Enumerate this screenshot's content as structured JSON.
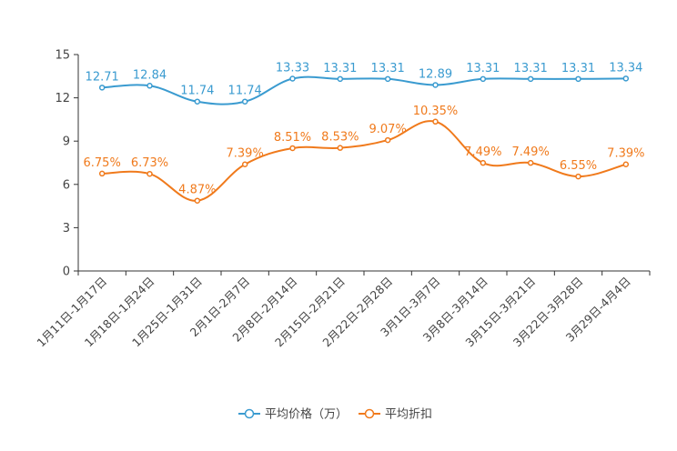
{
  "chart_data": {
    "type": "line",
    "title": "",
    "xlabel": "",
    "ylabel": "",
    "ylim": [
      0,
      15
    ],
    "yticks": [
      0,
      3,
      6,
      9,
      12,
      15
    ],
    "categories": [
      "1月11日-1月17日",
      "1月18日-1月24日",
      "1月25日-1月31日",
      "2月1日-2月7日",
      "2月8日-2月14日",
      "2月15日-2月21日",
      "2月22日-2月28日",
      "3月1日-3月7日",
      "3月8日-3月14日",
      "3月15日-3月21日",
      "3月22日-3月28日",
      "3月29日-4月4日"
    ],
    "series": [
      {
        "name": "平均价格（万）",
        "color": "#3a9bd0",
        "values": [
          12.71,
          12.84,
          11.74,
          11.74,
          13.33,
          13.31,
          13.31,
          12.89,
          13.31,
          13.31,
          13.31,
          13.34
        ],
        "labels": [
          "12.71",
          "12.84",
          "11.74",
          "11.74",
          "13.33",
          "13.31",
          "13.31",
          "12.89",
          "13.31",
          "13.31",
          "13.31",
          "13.34"
        ]
      },
      {
        "name": "平均折扣",
        "color": "#f07a1c",
        "values": [
          6.75,
          6.73,
          4.87,
          7.39,
          8.51,
          8.53,
          9.07,
          10.35,
          7.49,
          7.49,
          6.55,
          7.39
        ],
        "labels": [
          "6.75%",
          "6.73%",
          "4.87%",
          "7.39%",
          "8.51%",
          "8.53%",
          "9.07%",
          "10.35%",
          "7.49%",
          "7.49%",
          "6.55%",
          "7.39%"
        ]
      }
    ],
    "legend_position": "bottom-center",
    "grid": false
  }
}
